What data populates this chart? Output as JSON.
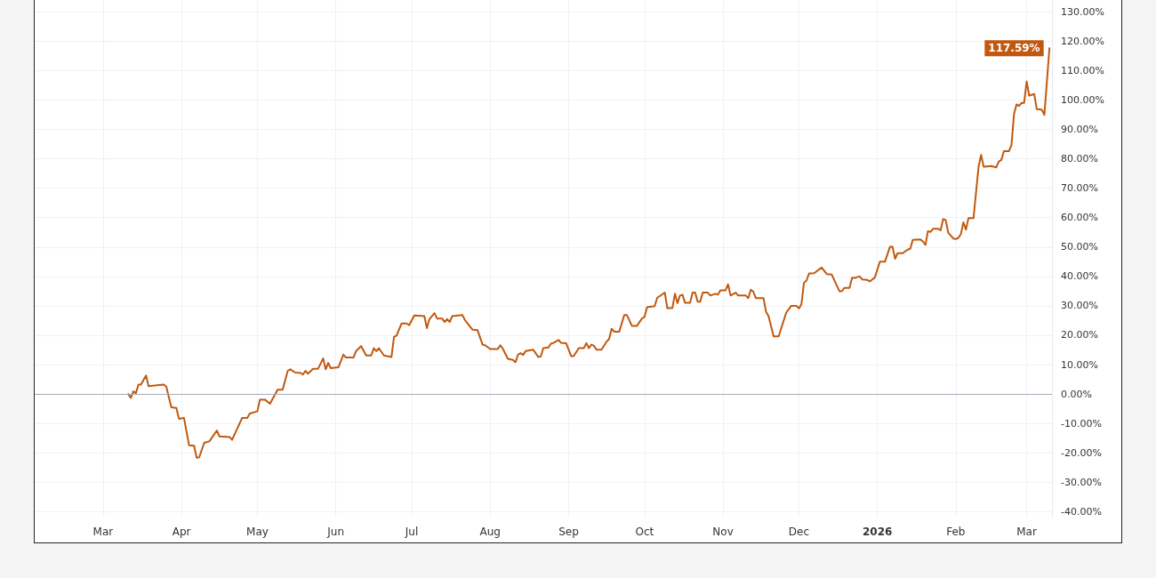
{
  "chart_data": {
    "type": "line",
    "x": [
      "2025-03-11",
      "2025-03-12",
      "2025-03-13",
      "2025-03-14",
      "2025-03-15",
      "2025-03-16",
      "2025-03-18",
      "2025-03-19",
      "2025-03-25",
      "2025-03-26",
      "2025-03-28",
      "2025-03-30",
      "2025-03-31",
      "2025-04-02",
      "2025-04-04",
      "2025-04-06",
      "2025-04-07",
      "2025-04-08",
      "2025-04-10",
      "2025-04-12",
      "2025-04-15",
      "2025-04-16",
      "2025-04-20",
      "2025-04-21",
      "2025-04-25",
      "2025-04-27",
      "2025-04-28",
      "2025-05-01",
      "2025-05-02",
      "2025-05-04",
      "2025-05-06",
      "2025-05-09",
      "2025-05-11",
      "2025-05-13",
      "2025-05-14",
      "2025-05-16",
      "2025-05-18",
      "2025-05-19",
      "2025-05-20",
      "2025-05-21",
      "2025-05-23",
      "2025-05-25",
      "2025-05-27",
      "2025-05-28",
      "2025-05-29",
      "2025-05-30",
      "2025-06-02",
      "2025-06-04",
      "2025-06-05",
      "2025-06-08",
      "2025-06-09",
      "2025-06-11",
      "2025-06-13",
      "2025-06-15",
      "2025-06-16",
      "2025-06-17",
      "2025-06-18",
      "2025-06-20",
      "2025-06-23",
      "2025-06-24",
      "2025-06-25",
      "2025-06-27",
      "2025-06-29",
      "2025-06-30",
      "2025-07-02",
      "2025-07-06",
      "2025-07-07",
      "2025-07-08",
      "2025-07-10",
      "2025-07-11",
      "2025-07-13",
      "2025-07-14",
      "2025-07-15",
      "2025-07-16",
      "2025-07-17",
      "2025-07-21",
      "2025-07-22",
      "2025-07-25",
      "2025-07-27",
      "2025-07-29",
      "2025-07-30",
      "2025-08-01",
      "2025-08-04",
      "2025-08-05",
      "2025-08-06",
      "2025-08-08",
      "2025-08-10",
      "2025-08-11",
      "2025-08-12",
      "2025-08-13",
      "2025-08-14",
      "2025-08-15",
      "2025-08-18",
      "2025-08-20",
      "2025-08-21",
      "2025-08-22",
      "2025-08-24",
      "2025-08-25",
      "2025-08-26",
      "2025-08-28",
      "2025-08-29",
      "2025-08-31",
      "2025-09-02",
      "2025-09-03",
      "2025-09-05",
      "2025-09-07",
      "2025-09-08",
      "2025-09-09",
      "2025-09-10",
      "2025-09-11",
      "2025-09-12",
      "2025-09-14",
      "2025-09-16",
      "2025-09-17",
      "2025-09-18",
      "2025-09-19",
      "2025-09-21",
      "2025-09-23",
      "2025-09-24",
      "2025-09-26",
      "2025-09-28",
      "2025-09-30",
      "2025-10-01",
      "2025-10-02",
      "2025-10-05",
      "2025-10-06",
      "2025-10-09",
      "2025-10-10",
      "2025-10-12",
      "2025-10-13",
      "2025-10-14",
      "2025-10-15",
      "2025-10-16",
      "2025-10-17",
      "2025-10-19",
      "2025-10-20",
      "2025-10-21",
      "2025-10-22",
      "2025-10-23",
      "2025-10-24",
      "2025-10-26",
      "2025-10-27",
      "2025-10-29",
      "2025-10-30",
      "2025-10-31",
      "2025-11-02",
      "2025-11-03",
      "2025-11-04",
      "2025-11-06",
      "2025-11-07",
      "2025-11-10",
      "2025-11-11",
      "2025-11-12",
      "2025-11-13",
      "2025-11-14",
      "2025-11-17",
      "2025-11-18",
      "2025-11-19",
      "2025-11-21",
      "2025-11-23",
      "2025-11-26",
      "2025-11-28",
      "2025-11-30",
      "2025-12-01",
      "2025-12-02",
      "2025-12-03",
      "2025-12-04",
      "2025-12-05",
      "2025-12-07",
      "2025-12-10",
      "2025-12-12",
      "2025-12-14",
      "2025-12-16",
      "2025-12-17",
      "2025-12-18",
      "2025-12-19",
      "2025-12-21",
      "2025-12-22",
      "2025-12-23",
      "2025-12-25",
      "2025-12-26",
      "2025-12-28",
      "2025-12-29",
      "2025-12-31",
      "2026-01-02",
      "2026-01-04",
      "2026-01-06",
      "2026-01-07",
      "2026-01-08",
      "2026-01-09",
      "2026-01-11",
      "2026-01-13",
      "2026-01-14",
      "2026-01-15",
      "2026-01-18",
      "2026-01-19",
      "2026-01-20",
      "2026-01-21",
      "2026-01-22",
      "2026-01-23",
      "2026-01-25",
      "2026-01-26",
      "2026-01-27",
      "2026-01-28",
      "2026-01-29",
      "2026-01-31",
      "2026-02-01",
      "2026-02-02",
      "2026-02-03",
      "2026-02-04",
      "2026-02-05",
      "2026-02-06",
      "2026-02-08",
      "2026-02-10",
      "2026-02-11",
      "2026-02-12",
      "2026-02-15",
      "2026-02-17",
      "2026-02-18",
      "2026-02-19",
      "2026-02-20",
      "2026-02-22",
      "2026-02-23",
      "2026-02-24",
      "2026-02-25",
      "2026-02-26",
      "2026-02-27",
      "2026-02-28",
      "2026-03-01",
      "2026-03-02",
      "2026-03-04",
      "2026-03-05",
      "2026-03-07",
      "2026-03-08",
      "2026-03-10"
    ],
    "series": [
      {
        "color": "#c0590f",
        "values": [
          0.0,
          -1.3,
          0.9,
          0.3,
          3.2,
          3.2,
          6.3,
          2.7,
          3.2,
          2.5,
          -4.5,
          -4.7,
          -8.4,
          -8.1,
          -17.4,
          -17.6,
          -21.7,
          -21.5,
          -16.6,
          -16.1,
          -12.4,
          -14.4,
          -14.6,
          -15.6,
          -8.1,
          -8.1,
          -6.6,
          -5.9,
          -1.9,
          -1.9,
          -3.3,
          1.5,
          1.5,
          7.9,
          8.4,
          7.3,
          7.2,
          6.6,
          7.9,
          6.9,
          8.6,
          8.6,
          12.1,
          8.4,
          10.6,
          8.8,
          9.1,
          13.4,
          12.4,
          12.4,
          14.6,
          16.3,
          13.1,
          13.1,
          15.6,
          14.6,
          15.6,
          13.1,
          12.6,
          19.4,
          19.9,
          24.0,
          24.0,
          23.4,
          26.7,
          26.5,
          22.4,
          25.5,
          27.5,
          25.7,
          25.7,
          24.5,
          25.5,
          24.5,
          26.5,
          26.9,
          25.2,
          21.9,
          21.7,
          16.8,
          16.6,
          15.3,
          15.3,
          16.6,
          15.4,
          12.0,
          11.6,
          10.8,
          13.4,
          13.9,
          13.3,
          14.6,
          15.1,
          12.6,
          12.8,
          15.6,
          15.8,
          17.1,
          17.4,
          18.4,
          17.4,
          17.3,
          12.9,
          12.9,
          15.6,
          15.6,
          17.3,
          15.6,
          16.8,
          16.4,
          15.1,
          15.1,
          17.8,
          18.7,
          22.2,
          21.2,
          21.2,
          26.9,
          26.9,
          23.2,
          23.2,
          25.7,
          26.2,
          29.5,
          29.9,
          32.7,
          34.5,
          29.2,
          29.2,
          34.1,
          30.9,
          33.5,
          33.8,
          31.0,
          31.0,
          34.5,
          34.5,
          31.4,
          31.4,
          34.5,
          34.5,
          33.5,
          34.1,
          33.8,
          35.3,
          35.3,
          37.3,
          33.5,
          34.5,
          33.5,
          33.5,
          32.6,
          35.5,
          34.8,
          32.6,
          32.6,
          28.0,
          26.5,
          19.6,
          19.6,
          27.7,
          30.0,
          30.0,
          29.1,
          30.5,
          37.8,
          38.6,
          41.0,
          41.1,
          43.0,
          40.8,
          40.6,
          36.8,
          35.0,
          35.0,
          36.1,
          36.1,
          39.5,
          39.5,
          40.0,
          39.0,
          38.8,
          38.3,
          39.6,
          45.0,
          45.0,
          50.1,
          50.1,
          46.0,
          47.9,
          47.9,
          49.1,
          49.4,
          52.4,
          52.6,
          51.9,
          50.7,
          55.4,
          55.1,
          56.2,
          56.2,
          55.7,
          59.5,
          59.2,
          54.9,
          52.9,
          52.7,
          53.1,
          54.4,
          58.4,
          55.9,
          59.8,
          59.8,
          77.3,
          81.3,
          77.3,
          77.5,
          77.1,
          79.1,
          79.6,
          82.6,
          82.6,
          84.6,
          95.2,
          98.5,
          98.0,
          99.0,
          99.0,
          106.3,
          101.5,
          102.0,
          96.9,
          96.7,
          94.9,
          117.59
        ]
      }
    ],
    "xlim": [
      "2025-02-02",
      "2026-03-11"
    ],
    "xticks": [
      {
        "value": "2025-03-01",
        "label": "Mar"
      },
      {
        "value": "2025-04-01",
        "label": "Apr"
      },
      {
        "value": "2025-05-01",
        "label": "May"
      },
      {
        "value": "2025-06-01",
        "label": "Jun"
      },
      {
        "value": "2025-07-01",
        "label": "Jul"
      },
      {
        "value": "2025-08-01",
        "label": "Aug"
      },
      {
        "value": "2025-09-01",
        "label": "Sep"
      },
      {
        "value": "2025-10-01",
        "label": "Oct"
      },
      {
        "value": "2025-11-01",
        "label": "Nov"
      },
      {
        "value": "2025-12-01",
        "label": "Dec"
      },
      {
        "value": "2026-01-01",
        "label": "2026"
      },
      {
        "value": "2026-02-01",
        "label": "Feb"
      },
      {
        "value": "2026-03-01",
        "label": "Mar"
      }
    ],
    "ylim": [
      -42,
      134
    ],
    "yticks": [
      {
        "value": -40,
        "label": "-40.00%"
      },
      {
        "value": -30,
        "label": "-30.00%"
      },
      {
        "value": -20,
        "label": "-20.00%"
      },
      {
        "value": -10,
        "label": "-10.00%"
      },
      {
        "value": 0,
        "label": "0.00%"
      },
      {
        "value": 10,
        "label": "10.00%"
      },
      {
        "value": 20,
        "label": "20.00%"
      },
      {
        "value": 30,
        "label": "30.00%"
      },
      {
        "value": 40,
        "label": "40.00%"
      },
      {
        "value": 50,
        "label": "50.00%"
      },
      {
        "value": 60,
        "label": "60.00%"
      },
      {
        "value": 70,
        "label": "70.00%"
      },
      {
        "value": 80,
        "label": "80.00%"
      },
      {
        "value": 90,
        "label": "90.00%"
      },
      {
        "value": 100,
        "label": "100.00%"
      },
      {
        "value": 110,
        "label": "110.00%"
      },
      {
        "value": 120,
        "label": "120.00%"
      },
      {
        "value": 130,
        "label": "130.00%"
      }
    ],
    "ref_lines": [
      {
        "axis": "y",
        "value": 0,
        "color": "#a9adb8"
      }
    ],
    "annotations": [
      {
        "text": "117.59%",
        "x": "2026-03-10",
        "y": 117.59
      }
    ],
    "grid": true,
    "marker": "none",
    "line_style": "solid"
  }
}
